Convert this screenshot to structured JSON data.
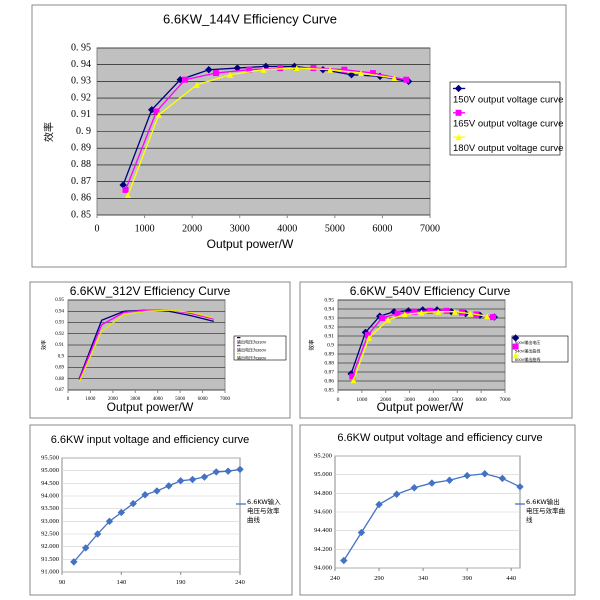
{
  "chart_data": [
    {
      "type": "line",
      "title": "6.6KW_144V Efficiency Curve",
      "x_label": "Output power/W",
      "y_label": "效率",
      "plot_color": "#c0c0c0",
      "grid": true,
      "xlim": [
        0,
        7000
      ],
      "xticks": [
        0,
        1000,
        2000,
        3000,
        4000,
        5000,
        6000,
        7000
      ],
      "ylim": [
        0.85,
        0.95
      ],
      "yticks": [
        {
          "value": 0.85,
          "label": "0. 85"
        },
        {
          "value": 0.86,
          "label": "0. 86"
        },
        {
          "value": 0.87,
          "label": "0. 87"
        },
        {
          "value": 0.88,
          "label": "0. 88"
        },
        {
          "value": 0.89,
          "label": "0. 89"
        },
        {
          "value": 0.9,
          "label": "0. 9"
        },
        {
          "value": 0.91,
          "label": "0. 91"
        },
        {
          "value": 0.92,
          "label": "0. 92"
        },
        {
          "value": 0.93,
          "label": "0. 93"
        },
        {
          "value": 0.94,
          "label": "0. 94"
        },
        {
          "value": 0.95,
          "label": "0. 95"
        }
      ],
      "series": [
        {
          "name": "150V output voltage curve",
          "color": "#000080",
          "marker": "diamond",
          "x": [
            550,
            1150,
            1750,
            2350,
            2950,
            3550,
            4150,
            4750,
            5350,
            5950,
            6550
          ],
          "values": [
            0.868,
            0.913,
            0.931,
            0.937,
            0.938,
            0.939,
            0.939,
            0.937,
            0.934,
            0.933,
            0.93
          ]
        },
        {
          "name": "165V output voltage curve",
          "color": "#ff00ff",
          "marker": "square",
          "x": [
            600,
            1250,
            1850,
            2500,
            3200,
            3850,
            4550,
            5200,
            5800,
            6500
          ],
          "values": [
            0.865,
            0.912,
            0.931,
            0.935,
            0.937,
            0.938,
            0.938,
            0.937,
            0.935,
            0.931
          ]
        },
        {
          "name": "180V output voltage curve",
          "color": "#ffff00",
          "marker": "triangle",
          "x": [
            650,
            1300,
            2100,
            2800,
            3500,
            4200,
            4900,
            5550,
            6250
          ],
          "values": [
            0.862,
            0.91,
            0.928,
            0.934,
            0.937,
            0.938,
            0.937,
            0.935,
            0.932
          ]
        }
      ]
    },
    {
      "type": "line",
      "title": "6.6KW_312V Efficiency Curve",
      "x_label": "Output power/W",
      "y_label": "效率",
      "plot_color": "#c0c0c0",
      "grid": true,
      "xlim": [
        0,
        7000
      ],
      "xticks": [
        0,
        1000,
        2000,
        3000,
        4000,
        5000,
        6000,
        7000
      ],
      "ylim": [
        0.87,
        0.95
      ],
      "yticks": [
        0.87,
        0.88,
        0.89,
        0.9,
        0.91,
        0.92,
        0.93,
        0.94,
        0.95
      ],
      "series": [
        {
          "name": "输出电压为330V",
          "color": "#000080",
          "marker": "none",
          "x": [
            500,
            1500,
            2500,
            3500,
            4500,
            5500,
            6500
          ],
          "values": [
            0.88,
            0.932,
            0.94,
            0.941,
            0.94,
            0.936,
            0.931
          ]
        },
        {
          "name": "输出电压为360V",
          "color": "#ff00ff",
          "marker": "none",
          "x": [
            500,
            1500,
            2500,
            3500,
            4500,
            5500,
            6500
          ],
          "values": [
            0.879,
            0.928,
            0.939,
            0.941,
            0.941,
            0.938,
            0.933
          ]
        },
        {
          "name": "输出电压为380V",
          "color": "#e6e600",
          "marker": "none",
          "x": [
            500,
            1500,
            2500,
            3500,
            4500,
            5500,
            6500
          ],
          "values": [
            0.877,
            0.922,
            0.937,
            0.94,
            0.941,
            0.939,
            0.934
          ]
        }
      ]
    },
    {
      "type": "line",
      "title": "6.6KW_540V Efficiency Curve",
      "x_label": "Output power/W",
      "y_label": "效率",
      "plot_color": "#c0c0c0",
      "grid": true,
      "xlim": [
        0,
        7000
      ],
      "xticks": [
        0,
        1000,
        2000,
        3000,
        4000,
        5000,
        6000,
        7000
      ],
      "ylim": [
        0.85,
        0.95
      ],
      "yticks": [
        0.85,
        0.86,
        0.87,
        0.88,
        0.89,
        0.9,
        0.91,
        0.92,
        0.93,
        0.94,
        0.95
      ],
      "series": [
        {
          "name": "500V输出电压",
          "color": "#000080",
          "marker": "diamond",
          "x": [
            550,
            1150,
            1750,
            2350,
            2950,
            3550,
            4150,
            4750,
            5350,
            5950,
            6550
          ],
          "values": [
            0.868,
            0.914,
            0.932,
            0.937,
            0.938,
            0.939,
            0.939,
            0.937,
            0.935,
            0.933,
            0.931
          ]
        },
        {
          "name": "540V输出曲线",
          "color": "#ff00ff",
          "marker": "square",
          "x": [
            600,
            1250,
            1850,
            2500,
            3200,
            3850,
            4550,
            5200,
            5800,
            6500
          ],
          "values": [
            0.865,
            0.911,
            0.93,
            0.935,
            0.937,
            0.938,
            0.938,
            0.936,
            0.934,
            0.931
          ]
        },
        {
          "name": "600V输出曲线",
          "color": "#ffff00",
          "marker": "triangle",
          "x": [
            650,
            1300,
            2100,
            2800,
            3500,
            4200,
            4900,
            5550,
            6250
          ],
          "values": [
            0.861,
            0.908,
            0.928,
            0.934,
            0.936,
            0.937,
            0.937,
            0.935,
            0.932
          ]
        }
      ]
    },
    {
      "type": "line",
      "title": "6.6KW input voltage and efficiency curve",
      "plot_color": "#ffffff",
      "grid": true,
      "xlim": [
        90,
        240
      ],
      "xticks": [
        90,
        140,
        190,
        240
      ],
      "ylim": [
        91,
        95.5
      ],
      "yticks": [
        {
          "value": 91,
          "label": "91.000"
        },
        {
          "value": 91.5,
          "label": "91.500"
        },
        {
          "value": 92,
          "label": "92.000"
        },
        {
          "value": 92.5,
          "label": "92.500"
        },
        {
          "value": 93,
          "label": "93.000"
        },
        {
          "value": 93.5,
          "label": "93.500"
        },
        {
          "value": 94,
          "label": "94.000"
        },
        {
          "value": 94.5,
          "label": "94.500"
        },
        {
          "value": 95,
          "label": "95.000"
        },
        {
          "value": 95.5,
          "label": "95.500"
        }
      ],
      "series": [
        {
          "name": "6.6KW输入电压与效率曲线",
          "color": "#4472c4",
          "marker": "diamond",
          "x": [
            100,
            110,
            120,
            130,
            140,
            150,
            160,
            170,
            180,
            190,
            200,
            210,
            220,
            230,
            240
          ],
          "values": [
            91.4,
            91.95,
            92.5,
            93.0,
            93.35,
            93.7,
            94.05,
            94.2,
            94.4,
            94.6,
            94.65,
            94.75,
            94.95,
            94.98,
            95.05
          ]
        }
      ]
    },
    {
      "type": "line",
      "title": "6.6KW output voltage and efficiency curve",
      "plot_color": "#ffffff",
      "grid": true,
      "xlim": [
        240,
        450
      ],
      "xticks": [
        240,
        290,
        340,
        390,
        440
      ],
      "ylim": [
        94,
        95.2
      ],
      "yticks": [
        {
          "value": 94,
          "label": "94.000"
        },
        {
          "value": 94.2,
          "label": "94.200"
        },
        {
          "value": 94.4,
          "label": "94.400"
        },
        {
          "value": 94.6,
          "label": "94.600"
        },
        {
          "value": 94.8,
          "label": "94.800"
        },
        {
          "value": 95,
          "label": "95.000"
        },
        {
          "value": 95.2,
          "label": "95.200"
        }
      ],
      "series": [
        {
          "name": "6.6KW输出电压与效率曲线",
          "color": "#4472c4",
          "marker": "diamond",
          "x": [
            250,
            270,
            290,
            310,
            330,
            350,
            370,
            390,
            410,
            430,
            450
          ],
          "values": [
            94.08,
            94.38,
            94.68,
            94.79,
            94.86,
            94.91,
            94.94,
            94.99,
            95.01,
            94.96,
            94.87
          ]
        }
      ]
    }
  ]
}
